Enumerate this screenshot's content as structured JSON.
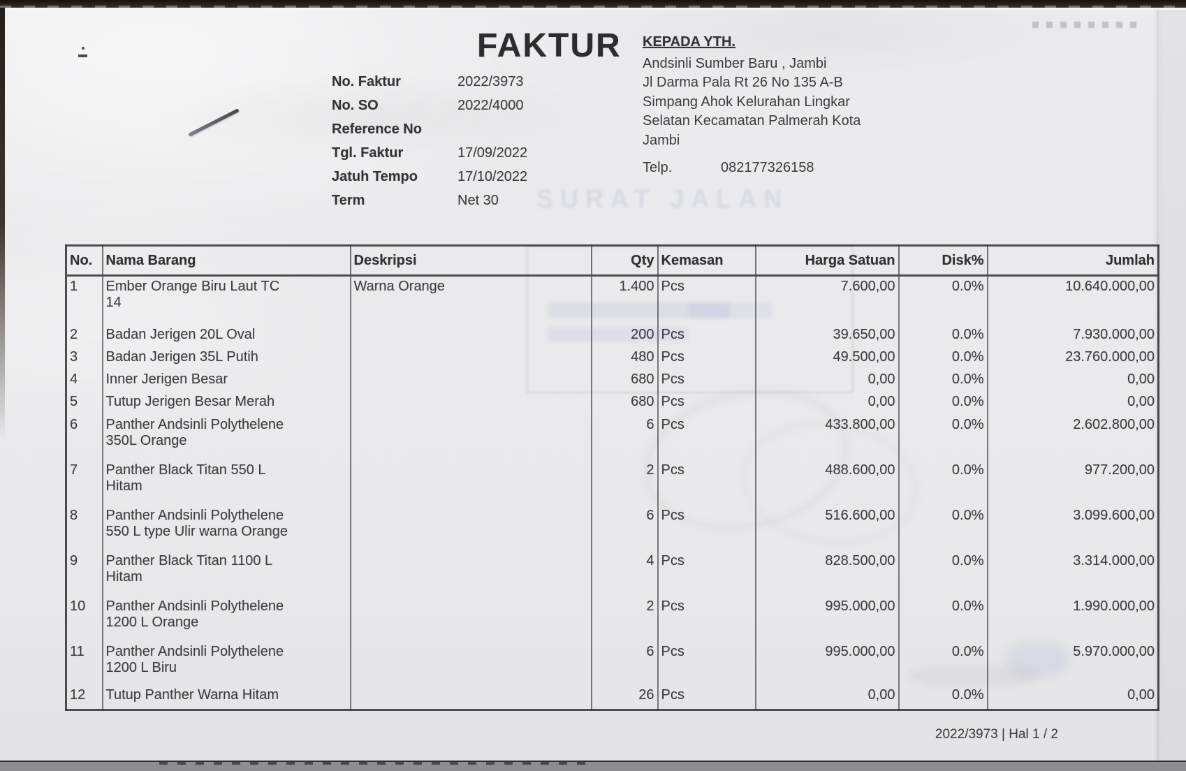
{
  "colors": {
    "paper": "#eaeaec",
    "ink": "#3b3b41",
    "bleed_blue": "#6e7da5"
  },
  "header": {
    "title": "FAKTUR",
    "meta": [
      {
        "label": "No. Faktur",
        "value": "2022/3973"
      },
      {
        "label": "No. SO",
        "value": "2022/4000"
      },
      {
        "label": "Reference No",
        "value": ""
      },
      {
        "label": "Tgl. Faktur",
        "value": "17/09/2022"
      },
      {
        "label": "Jatuh Tempo",
        "value": "17/10/2022"
      },
      {
        "label": "Term",
        "value": "Net 30"
      }
    ],
    "recipient": {
      "heading": "KEPADA YTH.",
      "name": "Andsinli Sumber Baru , Jambi",
      "address_lines": [
        "Jl Darma Pala Rt 26 No 135 A-B",
        "Simpang Ahok Kelurahan Lingkar",
        "Selatan Kecamatan Palmerah Kota",
        "Jambi"
      ],
      "phone_label": "Telp.",
      "phone": "082177326158"
    }
  },
  "table": {
    "columns": [
      "No.",
      "Nama Barang",
      "Deskripsi",
      "Qty",
      "Kemasan",
      "Harga Satuan",
      "Disk%",
      "Jumlah"
    ],
    "rows": [
      {
        "no": "1",
        "nama": "Ember Orange Biru Laut  TC\n14",
        "deskripsi": "Warna Orange",
        "qty": "1.400",
        "kemasan": "Pcs",
        "harga": "7.600,00",
        "disk": "0.0%",
        "jumlah": "10.640.000,00"
      },
      {
        "no": "2",
        "nama": "Badan Jerigen 20L Oval",
        "deskripsi": "",
        "qty": "200",
        "kemasan": "Pcs",
        "harga": "39.650,00",
        "disk": "0.0%",
        "jumlah": "7.930.000,00"
      },
      {
        "no": "3",
        "nama": "Badan Jerigen 35L Putih",
        "deskripsi": "",
        "qty": "480",
        "kemasan": "Pcs",
        "harga": "49.500,00",
        "disk": "0.0%",
        "jumlah": "23.760.000,00"
      },
      {
        "no": "4",
        "nama": "Inner Jerigen Besar",
        "deskripsi": "",
        "qty": "680",
        "kemasan": "Pcs",
        "harga": "0,00",
        "disk": "0.0%",
        "jumlah": "0,00"
      },
      {
        "no": "5",
        "nama": "Tutup Jerigen Besar Merah",
        "deskripsi": "",
        "qty": "680",
        "kemasan": "Pcs",
        "harga": "0,00",
        "disk": "0.0%",
        "jumlah": "0,00"
      },
      {
        "no": "6",
        "nama": "Panther Andsinli Polythelene\n350L Orange",
        "deskripsi": "",
        "qty": "6",
        "kemasan": "Pcs",
        "harga": "433.800,00",
        "disk": "0.0%",
        "jumlah": "2.602.800,00"
      },
      {
        "no": "7",
        "nama": "Panther Black Titan 550 L\nHitam",
        "deskripsi": "",
        "qty": "2",
        "kemasan": "Pcs",
        "harga": "488.600,00",
        "disk": "0.0%",
        "jumlah": "977.200,00"
      },
      {
        "no": "8",
        "nama": "Panther Andsinli Polythelene\n550 L type Ulir warna Orange",
        "deskripsi": "",
        "qty": "6",
        "kemasan": "Pcs",
        "harga": "516.600,00",
        "disk": "0.0%",
        "jumlah": "3.099.600,00"
      },
      {
        "no": "9",
        "nama": "Panther Black Titan 1100 L\nHitam",
        "deskripsi": "",
        "qty": "4",
        "kemasan": "Pcs",
        "harga": "828.500,00",
        "disk": "0.0%",
        "jumlah": "3.314.000,00"
      },
      {
        "no": "10",
        "nama": "Panther Andsinli Polythelene\n1200 L Orange",
        "deskripsi": "",
        "qty": "2",
        "kemasan": "Pcs",
        "harga": "995.000,00",
        "disk": "0.0%",
        "jumlah": "1.990.000,00"
      },
      {
        "no": "11",
        "nama": "Panther Andsinli Polythelene\n1200 L Biru",
        "deskripsi": "",
        "qty": "6",
        "kemasan": "Pcs",
        "harga": "995.000,00",
        "disk": "0.0%",
        "jumlah": "5.970.000,00"
      },
      {
        "no": "12",
        "nama": "Tutup Panther Warna Hitam",
        "deskripsi": "",
        "qty": "26",
        "kemasan": "Pcs",
        "harga": "0,00",
        "disk": "0.0%",
        "jumlah": "0,00"
      }
    ]
  },
  "artifacts": {
    "bleed_text": "SURAT JALAN"
  },
  "footer": {
    "page_info": "2022/3973 | Hal 1 / 2"
  }
}
